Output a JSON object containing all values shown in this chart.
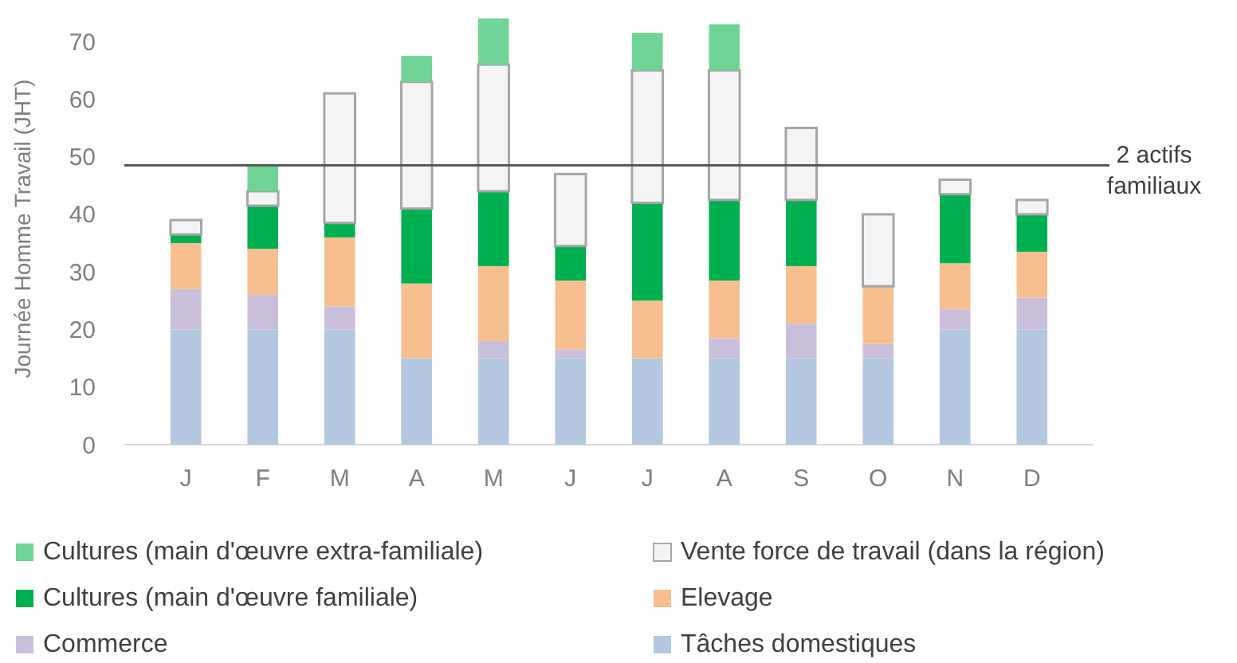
{
  "chart_data": {
    "type": "bar",
    "stacked": true,
    "ylabel": "Journée Homme Travail (JHT)",
    "categories": [
      "J",
      "F",
      "M",
      "A",
      "M",
      "J",
      "J",
      "A",
      "S",
      "O",
      "N",
      "D"
    ],
    "series": [
      {
        "name": "Tâches domestiques",
        "color": "#b4c8e1",
        "values": [
          20,
          20,
          20,
          15,
          15,
          15,
          15,
          15,
          15,
          15,
          20,
          20
        ]
      },
      {
        "name": "Commerce",
        "color": "#cbc0dc",
        "values": [
          7,
          6,
          4,
          0,
          3,
          1.5,
          0,
          3.5,
          6,
          2.5,
          3.5,
          5.5
        ]
      },
      {
        "name": "Elevage",
        "color": "#f7bf8f",
        "values": [
          8,
          8,
          12,
          13,
          13,
          12,
          10,
          10,
          10,
          10,
          8,
          8
        ]
      },
      {
        "name": "Cultures (main d'œuvre familiale)",
        "color": "#00b050",
        "values": [
          1.5,
          7.5,
          2.5,
          13,
          13,
          6,
          17,
          14,
          11.5,
          0,
          12,
          6.5
        ]
      },
      {
        "name": "Vente force de travail (dans la région)",
        "color": "#f4f4f4",
        "values": [
          2.5,
          2.5,
          22.5,
          22,
          22,
          12.5,
          23,
          22.5,
          12.5,
          12.5,
          2.5,
          2.5
        ]
      },
      {
        "name": "Cultures (main d'œuvre extra-familiale)",
        "color": "#6fd495",
        "values": [
          0,
          4.5,
          0,
          4.5,
          8,
          0,
          6.5,
          8,
          0,
          0,
          0,
          0
        ]
      }
    ],
    "ylim": [
      0,
      75
    ],
    "yticks": [
      0,
      10,
      20,
      30,
      40,
      50,
      60,
      70
    ],
    "grid": false,
    "legend": "bottom",
    "ref_lines": [
      {
        "axis": "y",
        "value": 48.5,
        "label": "2 actifs familiaux",
        "color": "#595959"
      }
    ]
  }
}
